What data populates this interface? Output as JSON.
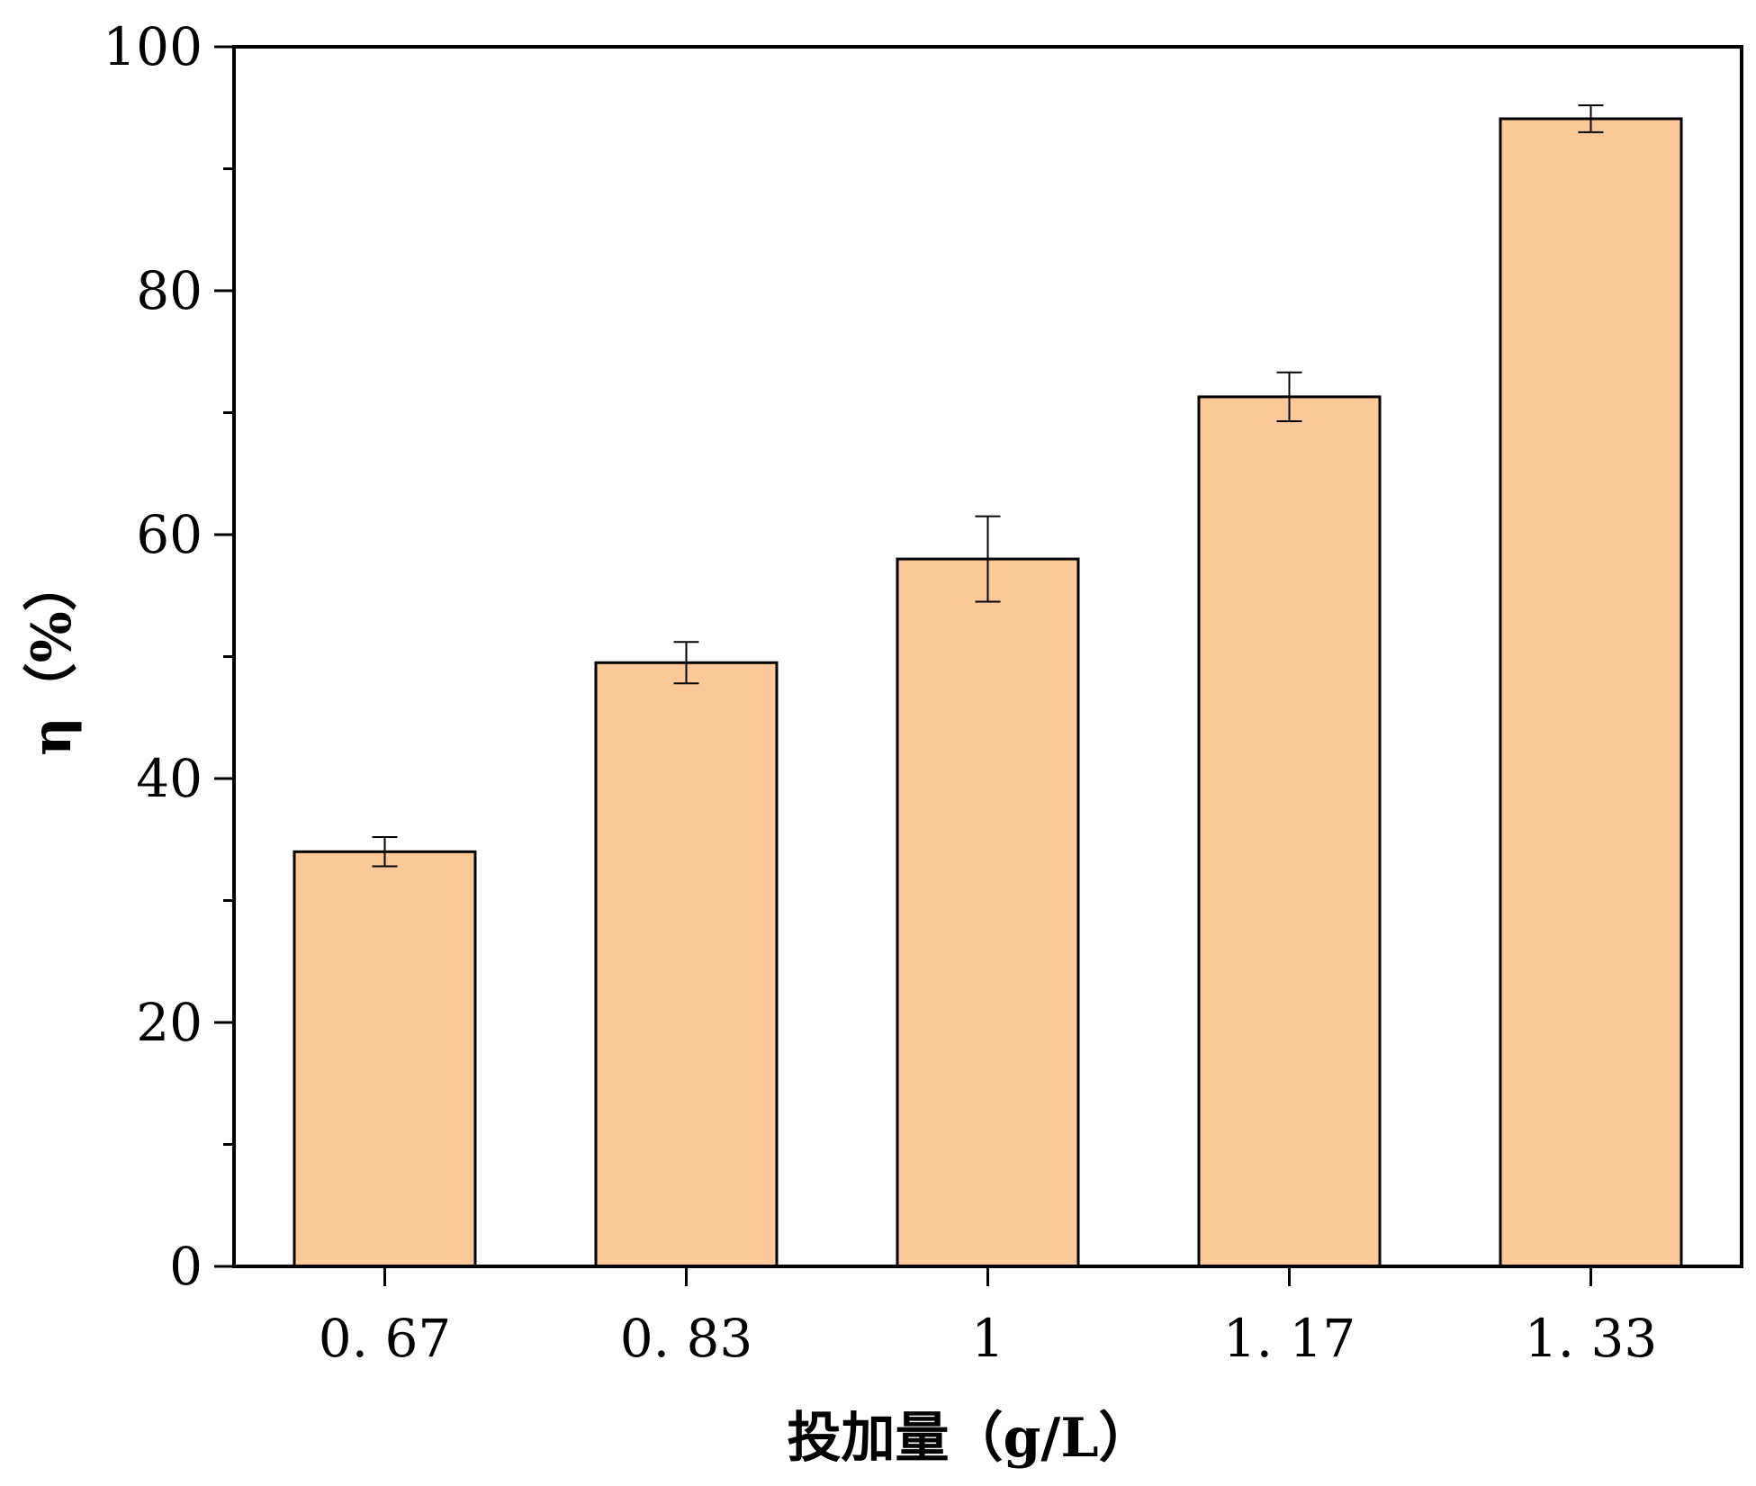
{
  "chart_data": {
    "type": "bar",
    "categories": [
      "0. 67",
      "0. 83",
      "1",
      "1. 17",
      "1. 33"
    ],
    "values": [
      34,
      49.5,
      58,
      71.3,
      94.1
    ],
    "errors": [
      1.2,
      1.7,
      3.5,
      2,
      1.1
    ],
    "xlabel": "投加量（g/L）",
    "ylabel": "η（%）",
    "ylim": [
      0,
      100
    ],
    "yticks": [
      0,
      20,
      40,
      60,
      80,
      100
    ],
    "grid": false,
    "bar_color": "#FBC897",
    "bar_edge_color": "#000000"
  }
}
